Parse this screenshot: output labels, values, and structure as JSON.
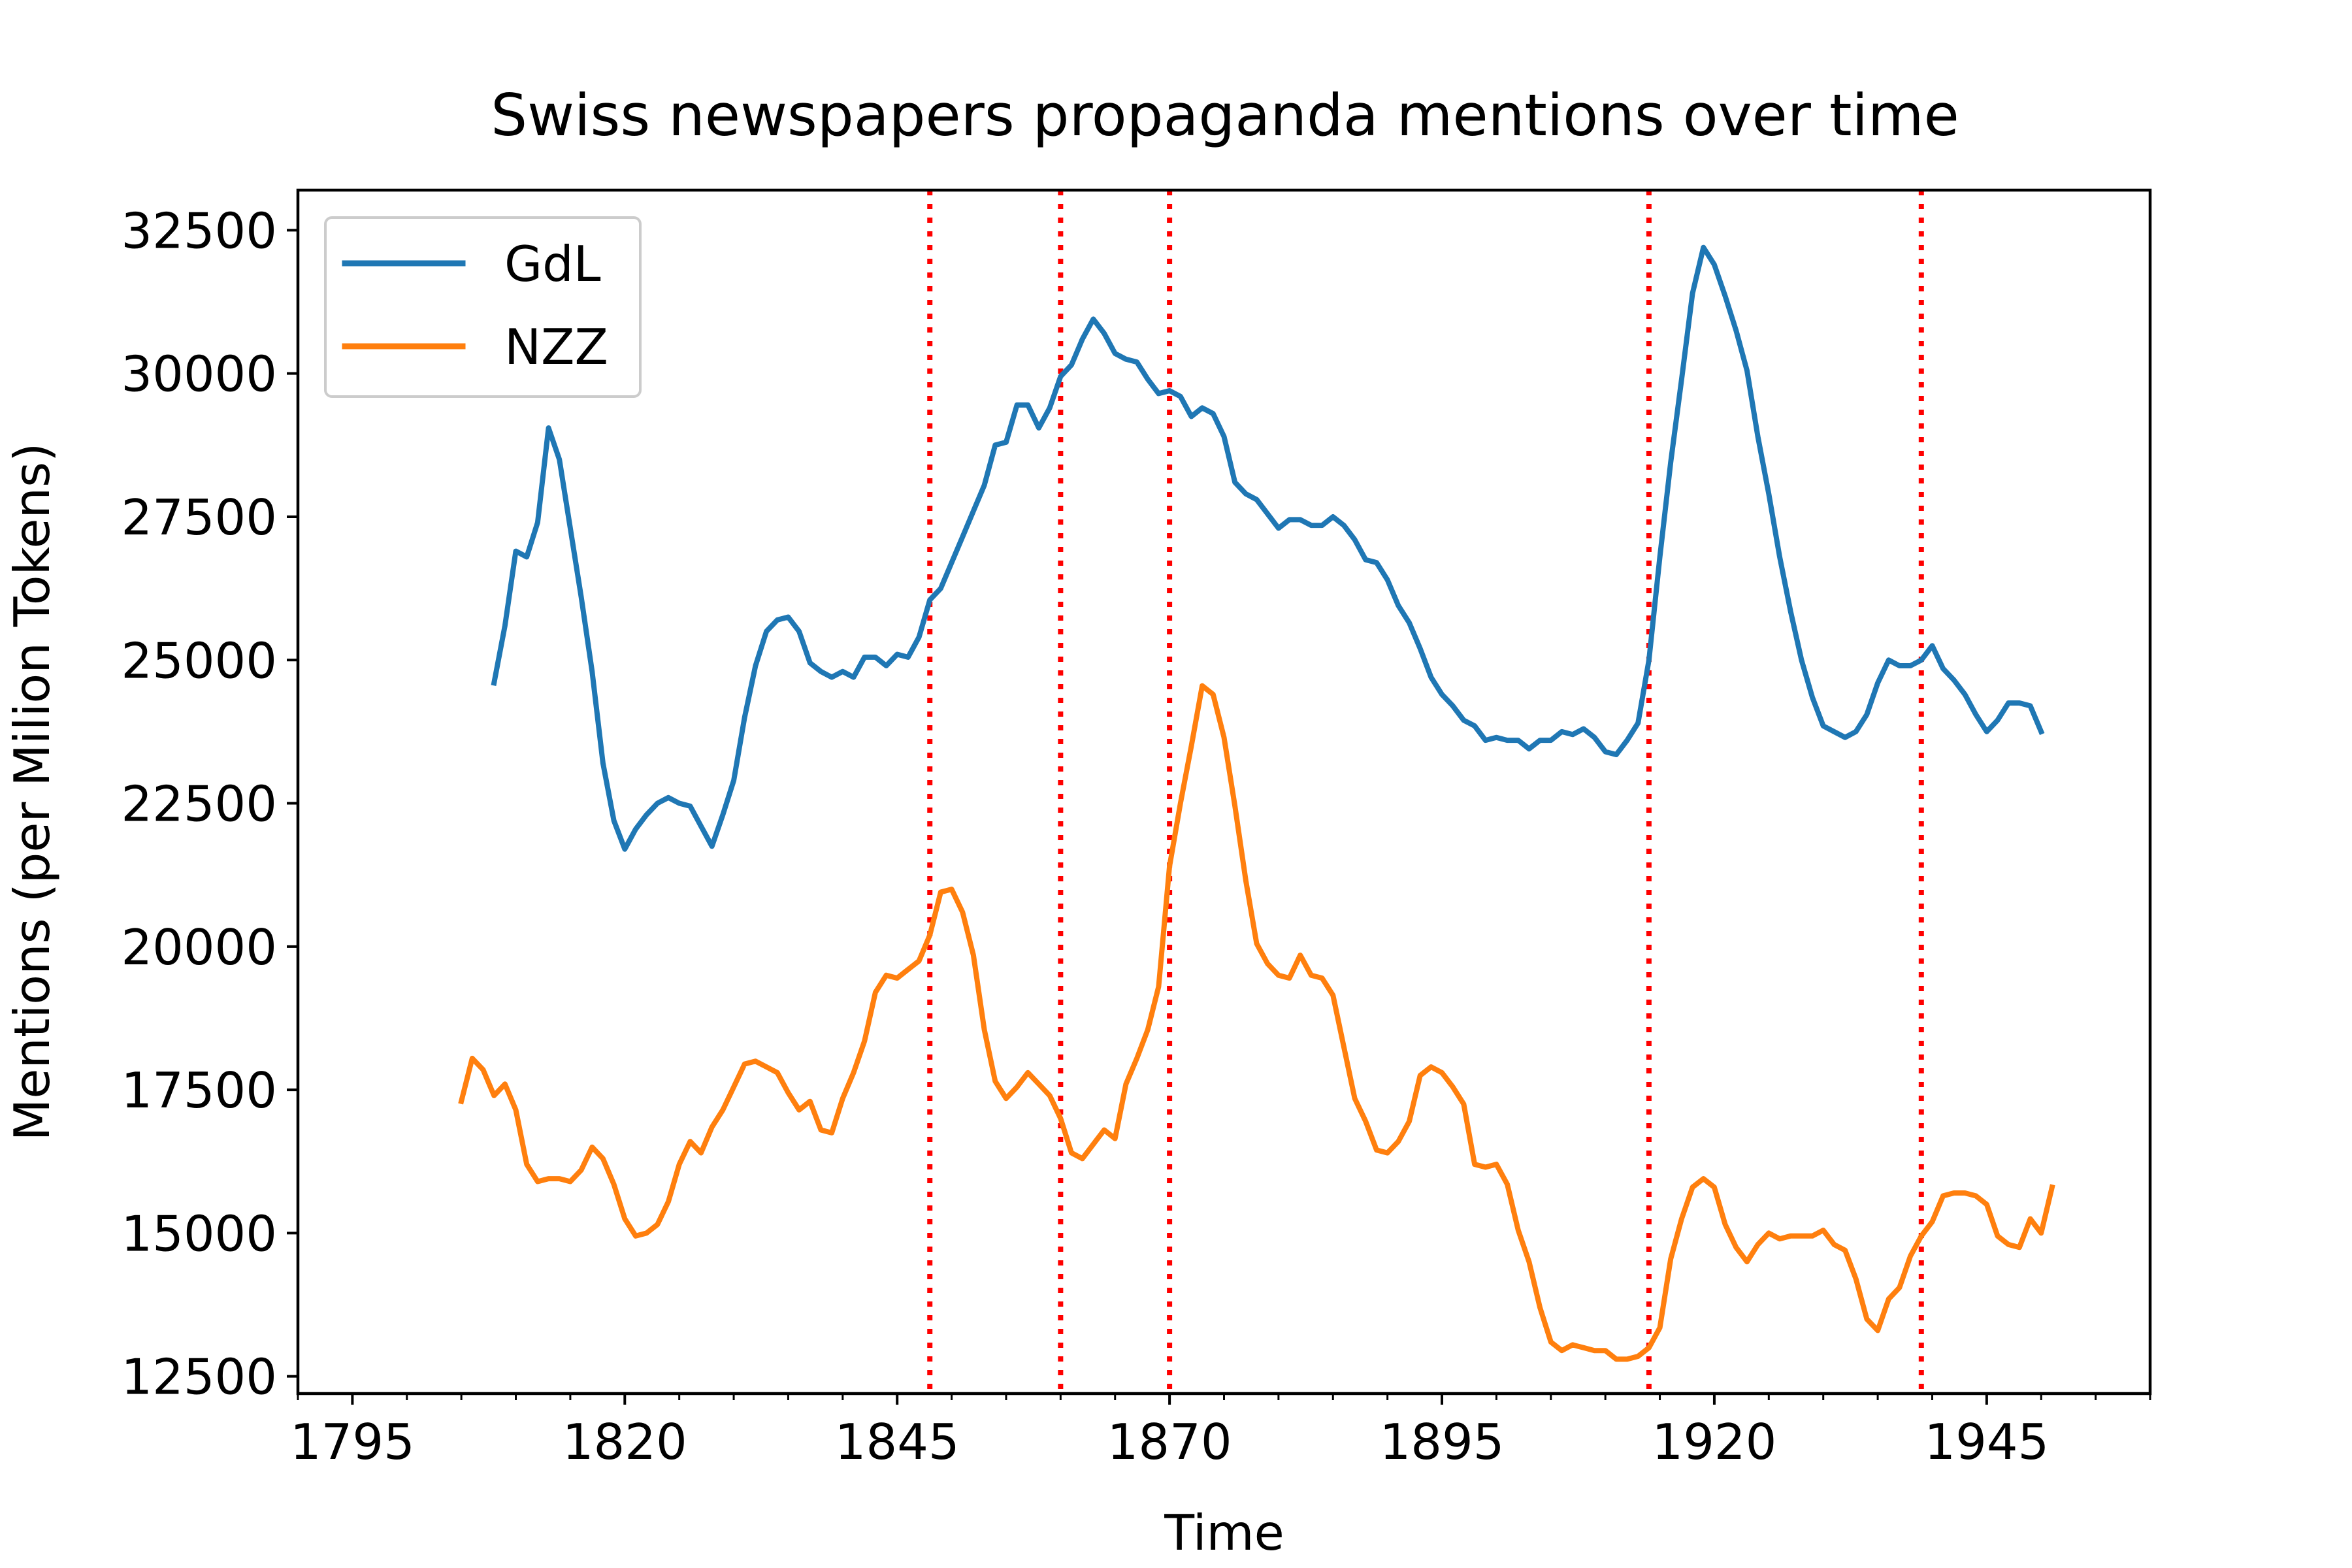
{
  "chart_data": {
    "type": "line",
    "title": "Swiss newspapers propaganda mentions over time",
    "xlabel": "Time",
    "ylabel": "Mentions (per Milion Tokens)",
    "xlim": [
      1790,
      1960
    ],
    "ylim": [
      12200,
      33200
    ],
    "x_ticks": [
      1795,
      1820,
      1845,
      1870,
      1895,
      1920,
      1945
    ],
    "x_minor_step": 5,
    "y_ticks": [
      12500,
      15000,
      17500,
      20000,
      22500,
      25000,
      27500,
      30000,
      32500
    ],
    "grid": false,
    "legend_position": "top-left",
    "vlines": {
      "x": [
        1848,
        1860,
        1870,
        1914,
        1939
      ],
      "color": "#ff0000",
      "style": "dotted"
    },
    "series": [
      {
        "name": "GdL",
        "color": "#1f77b4",
        "points": [
          [
            1808,
            24600
          ],
          [
            1809,
            25600
          ],
          [
            1810,
            26900
          ],
          [
            1811,
            26800
          ],
          [
            1812,
            27400
          ],
          [
            1813,
            29050
          ],
          [
            1814,
            28500
          ],
          [
            1815,
            27300
          ],
          [
            1816,
            26100
          ],
          [
            1817,
            24800
          ],
          [
            1818,
            23200
          ],
          [
            1819,
            22200
          ],
          [
            1820,
            21700
          ],
          [
            1821,
            22050
          ],
          [
            1822,
            22300
          ],
          [
            1823,
            22500
          ],
          [
            1824,
            22600
          ],
          [
            1825,
            22500
          ],
          [
            1826,
            22450
          ],
          [
            1827,
            22100
          ],
          [
            1828,
            21750
          ],
          [
            1829,
            22300
          ],
          [
            1830,
            22900
          ],
          [
            1831,
            24000
          ],
          [
            1832,
            24900
          ],
          [
            1833,
            25500
          ],
          [
            1834,
            25700
          ],
          [
            1835,
            25750
          ],
          [
            1836,
            25500
          ],
          [
            1837,
            24950
          ],
          [
            1838,
            24800
          ],
          [
            1839,
            24700
          ],
          [
            1840,
            24800
          ],
          [
            1841,
            24700
          ],
          [
            1842,
            25050
          ],
          [
            1843,
            25050
          ],
          [
            1844,
            24900
          ],
          [
            1845,
            25100
          ],
          [
            1846,
            25050
          ],
          [
            1847,
            25400
          ],
          [
            1848,
            26050
          ],
          [
            1849,
            26250
          ],
          [
            1850,
            26700
          ],
          [
            1851,
            27150
          ],
          [
            1852,
            27600
          ],
          [
            1853,
            28050
          ],
          [
            1854,
            28750
          ],
          [
            1855,
            28800
          ],
          [
            1856,
            29450
          ],
          [
            1857,
            29450
          ],
          [
            1858,
            29050
          ],
          [
            1859,
            29400
          ],
          [
            1860,
            29950
          ],
          [
            1861,
            30150
          ],
          [
            1862,
            30600
          ],
          [
            1863,
            30950
          ],
          [
            1864,
            30700
          ],
          [
            1865,
            30350
          ],
          [
            1866,
            30250
          ],
          [
            1867,
            30200
          ],
          [
            1868,
            29900
          ],
          [
            1869,
            29650
          ],
          [
            1870,
            29700
          ],
          [
            1871,
            29600
          ],
          [
            1872,
            29250
          ],
          [
            1873,
            29400
          ],
          [
            1874,
            29300
          ],
          [
            1875,
            28900
          ],
          [
            1876,
            28100
          ],
          [
            1877,
            27900
          ],
          [
            1878,
            27800
          ],
          [
            1879,
            27550
          ],
          [
            1880,
            27300
          ],
          [
            1881,
            27450
          ],
          [
            1882,
            27450
          ],
          [
            1883,
            27350
          ],
          [
            1884,
            27350
          ],
          [
            1885,
            27500
          ],
          [
            1886,
            27350
          ],
          [
            1887,
            27100
          ],
          [
            1888,
            26750
          ],
          [
            1889,
            26700
          ],
          [
            1890,
            26400
          ],
          [
            1891,
            25950
          ],
          [
            1892,
            25650
          ],
          [
            1893,
            25200
          ],
          [
            1894,
            24700
          ],
          [
            1895,
            24400
          ],
          [
            1896,
            24200
          ],
          [
            1897,
            23950
          ],
          [
            1898,
            23850
          ],
          [
            1899,
            23600
          ],
          [
            1900,
            23650
          ],
          [
            1901,
            23600
          ],
          [
            1902,
            23600
          ],
          [
            1903,
            23450
          ],
          [
            1904,
            23600
          ],
          [
            1905,
            23600
          ],
          [
            1906,
            23750
          ],
          [
            1907,
            23700
          ],
          [
            1908,
            23800
          ],
          [
            1909,
            23650
          ],
          [
            1910,
            23400
          ],
          [
            1911,
            23350
          ],
          [
            1912,
            23600
          ],
          [
            1913,
            23900
          ],
          [
            1914,
            25000
          ],
          [
            1915,
            26800
          ],
          [
            1916,
            28450
          ],
          [
            1917,
            29900
          ],
          [
            1918,
            31400
          ],
          [
            1919,
            32200
          ],
          [
            1920,
            31900
          ],
          [
            1921,
            31350
          ],
          [
            1922,
            30750
          ],
          [
            1923,
            30050
          ],
          [
            1924,
            28900
          ],
          [
            1925,
            27900
          ],
          [
            1926,
            26800
          ],
          [
            1927,
            25850
          ],
          [
            1928,
            25000
          ],
          [
            1929,
            24350
          ],
          [
            1930,
            23850
          ],
          [
            1931,
            23750
          ],
          [
            1932,
            23650
          ],
          [
            1933,
            23750
          ],
          [
            1934,
            24050
          ],
          [
            1935,
            24600
          ],
          [
            1936,
            25000
          ],
          [
            1937,
            24900
          ],
          [
            1938,
            24900
          ],
          [
            1939,
            25000
          ],
          [
            1940,
            25250
          ],
          [
            1941,
            24850
          ],
          [
            1942,
            24650
          ],
          [
            1943,
            24400
          ],
          [
            1944,
            24050
          ],
          [
            1945,
            23750
          ],
          [
            1946,
            23950
          ],
          [
            1947,
            24250
          ],
          [
            1948,
            24250
          ],
          [
            1949,
            24200
          ],
          [
            1950,
            23750
          ]
        ]
      },
      {
        "name": "NZZ",
        "color": "#ff7f0e",
        "points": [
          [
            1805,
            17300
          ],
          [
            1806,
            18050
          ],
          [
            1807,
            17850
          ],
          [
            1808,
            17400
          ],
          [
            1809,
            17600
          ],
          [
            1810,
            17150
          ],
          [
            1811,
            16200
          ],
          [
            1812,
            15900
          ],
          [
            1813,
            15950
          ],
          [
            1814,
            15950
          ],
          [
            1815,
            15900
          ],
          [
            1816,
            16100
          ],
          [
            1817,
            16500
          ],
          [
            1818,
            16300
          ],
          [
            1819,
            15850
          ],
          [
            1820,
            15250
          ],
          [
            1821,
            14950
          ],
          [
            1822,
            15000
          ],
          [
            1823,
            15150
          ],
          [
            1824,
            15550
          ],
          [
            1825,
            16200
          ],
          [
            1826,
            16600
          ],
          [
            1827,
            16400
          ],
          [
            1828,
            16850
          ],
          [
            1829,
            17150
          ],
          [
            1830,
            17550
          ],
          [
            1831,
            17950
          ],
          [
            1832,
            18000
          ],
          [
            1833,
            17900
          ],
          [
            1834,
            17800
          ],
          [
            1835,
            17450
          ],
          [
            1836,
            17150
          ],
          [
            1837,
            17300
          ],
          [
            1838,
            16800
          ],
          [
            1839,
            16750
          ],
          [
            1840,
            17350
          ],
          [
            1841,
            17800
          ],
          [
            1842,
            18350
          ],
          [
            1843,
            19200
          ],
          [
            1844,
            19500
          ],
          [
            1845,
            19450
          ],
          [
            1846,
            19600
          ],
          [
            1847,
            19750
          ],
          [
            1848,
            20200
          ],
          [
            1849,
            20950
          ],
          [
            1850,
            21000
          ],
          [
            1851,
            20600
          ],
          [
            1852,
            19850
          ],
          [
            1853,
            18550
          ],
          [
            1854,
            17650
          ],
          [
            1855,
            17350
          ],
          [
            1856,
            17550
          ],
          [
            1857,
            17800
          ],
          [
            1858,
            17600
          ],
          [
            1859,
            17400
          ],
          [
            1860,
            17000
          ],
          [
            1861,
            16400
          ],
          [
            1862,
            16300
          ],
          [
            1863,
            16550
          ],
          [
            1864,
            16800
          ],
          [
            1865,
            16650
          ],
          [
            1866,
            17600
          ],
          [
            1867,
            18050
          ],
          [
            1868,
            18550
          ],
          [
            1869,
            19300
          ],
          [
            1870,
            21400
          ],
          [
            1871,
            22500
          ],
          [
            1872,
            23500
          ],
          [
            1873,
            24550
          ],
          [
            1874,
            24400
          ],
          [
            1875,
            23650
          ],
          [
            1876,
            22450
          ],
          [
            1877,
            21150
          ],
          [
            1878,
            20050
          ],
          [
            1879,
            19700
          ],
          [
            1880,
            19500
          ],
          [
            1881,
            19450
          ],
          [
            1882,
            19850
          ],
          [
            1883,
            19500
          ],
          [
            1884,
            19450
          ],
          [
            1885,
            19150
          ],
          [
            1886,
            18250
          ],
          [
            1887,
            17350
          ],
          [
            1888,
            16950
          ],
          [
            1889,
            16450
          ],
          [
            1890,
            16400
          ],
          [
            1891,
            16600
          ],
          [
            1892,
            16950
          ],
          [
            1893,
            17750
          ],
          [
            1894,
            17900
          ],
          [
            1895,
            17800
          ],
          [
            1896,
            17550
          ],
          [
            1897,
            17250
          ],
          [
            1898,
            16200
          ],
          [
            1899,
            16150
          ],
          [
            1900,
            16200
          ],
          [
            1901,
            15850
          ],
          [
            1902,
            15050
          ],
          [
            1903,
            14500
          ],
          [
            1904,
            13700
          ],
          [
            1905,
            13100
          ],
          [
            1906,
            12950
          ],
          [
            1907,
            13050
          ],
          [
            1908,
            13000
          ],
          [
            1909,
            12950
          ],
          [
            1910,
            12950
          ],
          [
            1911,
            12800
          ],
          [
            1912,
            12800
          ],
          [
            1913,
            12850
          ],
          [
            1914,
            13000
          ],
          [
            1915,
            13350
          ],
          [
            1916,
            14550
          ],
          [
            1917,
            15250
          ],
          [
            1918,
            15800
          ],
          [
            1919,
            15950
          ],
          [
            1920,
            15800
          ],
          [
            1921,
            15150
          ],
          [
            1922,
            14750
          ],
          [
            1923,
            14500
          ],
          [
            1924,
            14800
          ],
          [
            1925,
            15000
          ],
          [
            1926,
            14900
          ],
          [
            1927,
            14950
          ],
          [
            1928,
            14950
          ],
          [
            1929,
            14950
          ],
          [
            1930,
            15050
          ],
          [
            1931,
            14800
          ],
          [
            1932,
            14700
          ],
          [
            1933,
            14200
          ],
          [
            1934,
            13500
          ],
          [
            1935,
            13300
          ],
          [
            1936,
            13850
          ],
          [
            1937,
            14050
          ],
          [
            1938,
            14600
          ],
          [
            1939,
            14950
          ],
          [
            1940,
            15200
          ],
          [
            1941,
            15650
          ],
          [
            1942,
            15700
          ],
          [
            1943,
            15700
          ],
          [
            1944,
            15650
          ],
          [
            1945,
            15500
          ],
          [
            1946,
            14950
          ],
          [
            1947,
            14800
          ],
          [
            1948,
            14750
          ],
          [
            1949,
            15250
          ],
          [
            1950,
            15000
          ],
          [
            1951,
            15800
          ]
        ]
      }
    ]
  }
}
